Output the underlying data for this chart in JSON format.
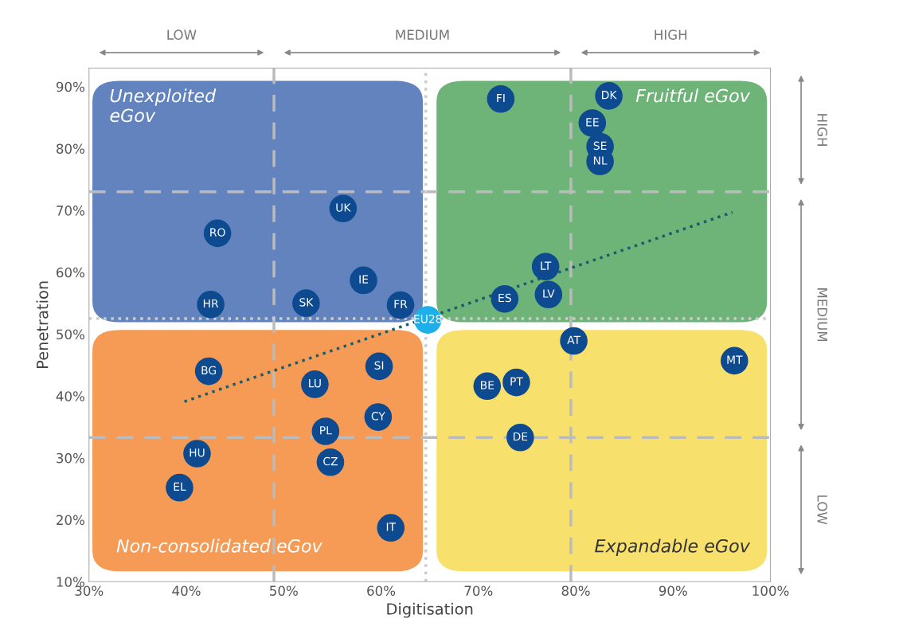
{
  "chart_data": {
    "type": "scatter",
    "xlabel": "Digitisation",
    "ylabel": "Penetration",
    "xlim": [
      30,
      100
    ],
    "ylim": [
      10,
      93
    ],
    "xticks": [
      {
        "value": 30,
        "label": "30%"
      },
      {
        "value": 40,
        "label": "40%"
      },
      {
        "value": 50,
        "label": "50%"
      },
      {
        "value": 60,
        "label": "60%"
      },
      {
        "value": 70,
        "label": "70%"
      },
      {
        "value": 80,
        "label": "80%"
      },
      {
        "value": 90,
        "label": "90%"
      },
      {
        "value": 100,
        "label": "100%"
      }
    ],
    "yticks": [
      {
        "value": 10,
        "label": "10%"
      },
      {
        "value": 20,
        "label": "20%"
      },
      {
        "value": 30,
        "label": "30%"
      },
      {
        "value": 40,
        "label": "40%"
      },
      {
        "value": 50,
        "label": "50%"
      },
      {
        "value": 60,
        "label": "60%"
      },
      {
        "value": 70,
        "label": "70%"
      },
      {
        "value": 80,
        "label": "80%"
      },
      {
        "value": 90,
        "label": "90%"
      }
    ],
    "grid": false,
    "legend": false,
    "series": [
      {
        "marker": "circle",
        "x": [
          72.3,
          83.4,
          81.7,
          82.5,
          82.5,
          56.1,
          43.2,
          76.9,
          58.2,
          77.2,
          72.7,
          42.5,
          52.3,
          62.0,
          64.8,
          79.8,
          96.3,
          42.3,
          59.8,
          53.2,
          70.9,
          73.9,
          59.7,
          54.3,
          74.3,
          41.1,
          54.8,
          39.3,
          61.0
        ],
        "values": [
          88.0,
          88.5,
          84.1,
          80.3,
          77.9,
          70.3,
          66.3,
          60.9,
          58.7,
          56.4,
          55.7,
          54.8,
          55.0,
          54.7,
          52.3,
          48.9,
          45.7,
          44.0,
          44.8,
          41.9,
          41.6,
          42.2,
          36.6,
          34.3,
          33.3,
          30.7,
          29.3,
          25.2,
          18.7
        ],
        "value_labels": [
          "FI",
          "DK",
          "EE",
          "SE",
          "NL",
          "UK",
          "RO",
          "LT",
          "IE",
          "LV",
          "ES",
          "HR",
          "SK",
          "FR",
          "EU28",
          "AT",
          "MT",
          "BG",
          "SI",
          "LU",
          "BE",
          "PT",
          "CY",
          "PL",
          "DE",
          "HU",
          "CZ",
          "EL",
          "IT"
        ],
        "colors": [
          "#0d4a8f",
          "#0d4a8f",
          "#0d4a8f",
          "#0d4a8f",
          "#0d4a8f",
          "#0d4a8f",
          "#0d4a8f",
          "#0d4a8f",
          "#0d4a8f",
          "#0d4a8f",
          "#0d4a8f",
          "#0d4a8f",
          "#0d4a8f",
          "#0d4a8f",
          "#1eaee8",
          "#0d4a8f",
          "#0d4a8f",
          "#0d4a8f",
          "#0d4a8f",
          "#0d4a8f",
          "#0d4a8f",
          "#0d4a8f",
          "#0d4a8f",
          "#0d4a8f",
          "#0d4a8f",
          "#0d4a8f",
          "#0d4a8f",
          "#0d4a8f",
          "#0d4a8f"
        ]
      },
      {
        "type": "line",
        "marker": "none",
        "line_style": "dotted",
        "color": "#1b5e6b",
        "x": [
          39.8,
          96.1
        ],
        "values": [
          39.1,
          69.7
        ]
      }
    ],
    "ref_lines": [
      {
        "axis": "x",
        "value": 49,
        "color": "#bbbbbb",
        "line_style": "dashed"
      },
      {
        "axis": "x",
        "value": 79.5,
        "color": "#bbbbbb",
        "line_style": "dashed"
      },
      {
        "axis": "y",
        "value": 73,
        "color": "#bbbbbb",
        "line_style": "dashed"
      },
      {
        "axis": "y",
        "value": 33.3,
        "color": "#bbbbbb",
        "line_style": "dashed"
      },
      {
        "axis": "x",
        "value": 64.6,
        "color": "#cccccc",
        "line_style": "dotted"
      },
      {
        "axis": "y",
        "value": 52.5,
        "color": "#cccccc",
        "line_style": "dotted"
      }
    ],
    "annotations": [
      "Unexploited\neGov",
      "Fruitful eGov",
      "Non-consolidated eGov",
      "Expandable eGov",
      "LOW",
      "MEDIUM",
      "HIGH",
      "LOW",
      "MEDIUM",
      "HIGH"
    ]
  }
}
